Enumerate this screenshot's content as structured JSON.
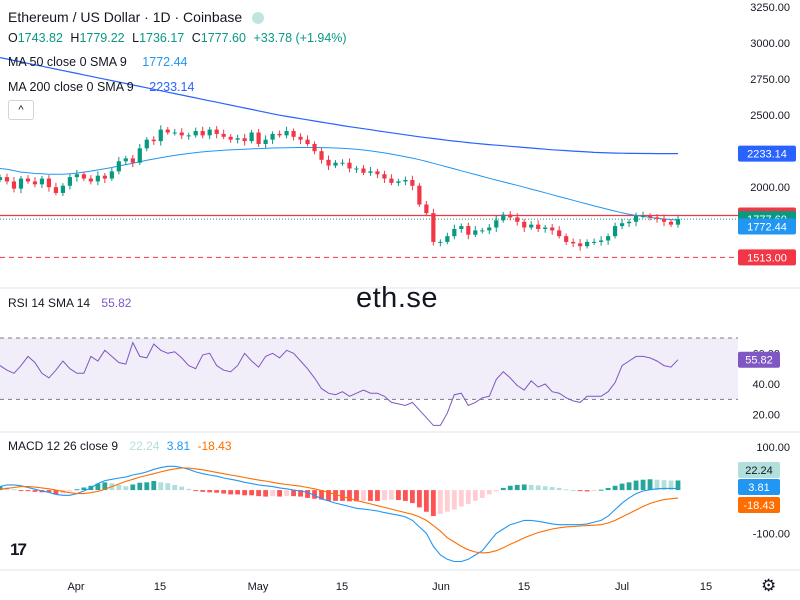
{
  "header": {
    "title": "Ethereum / US Dollar · 1D · Coinbase",
    "ohlc": {
      "o_label": "O",
      "o": "1743.82",
      "h_label": "H",
      "h": "1779.22",
      "l_label": "L",
      "l": "1736.17",
      "c_label": "C",
      "c": "1777.60",
      "change": "+33.78 (+1.94%)"
    },
    "ma50": {
      "label": "MA 50 close 0 SMA 9",
      "value": "1772.44"
    },
    "ma200": {
      "label": "MA 200 close 0 SMA 9",
      "value": "2233.14"
    },
    "collapse_icon": "^"
  },
  "watermark": "eth.se",
  "logo_text": "17",
  "settings_icon": "gear-icon",
  "colors": {
    "up": "#089981",
    "down": "#f23645",
    "ma50": "#2196f3",
    "ma200": "#2962ff",
    "rsi": "#7e57c2",
    "macd": "#2196f3",
    "signal": "#ff6d00",
    "hist_up_strong": "#26a69a",
    "hist_up_weak": "#b2dfdb",
    "hist_down_strong": "#ff5252",
    "hist_down_weak": "#ffcdd2"
  },
  "chart_data": [
    {
      "type": "candlestick",
      "title": "Ethereum / US Dollar · 1D · Coinbase",
      "ylim": [
        1300,
        3300
      ],
      "y_ticks": [
        "3250.00",
        "3000.00",
        "2750.00",
        "2500.00",
        "2250.00",
        "2000.00"
      ],
      "x_ticks": [
        "Apr",
        "15",
        "May",
        "15",
        "Jun",
        "15",
        "Jul",
        "15"
      ],
      "close": [
        2070,
        2040,
        1990,
        2060,
        2040,
        2020,
        2060,
        2000,
        1960,
        2010,
        2070,
        2090,
        2060,
        2040,
        2080,
        2060,
        2110,
        2180,
        2200,
        2170,
        2270,
        2330,
        2320,
        2400,
        2380,
        2380,
        2360,
        2360,
        2390,
        2360,
        2400,
        2370,
        2350,
        2330,
        2340,
        2320,
        2380,
        2300,
        2330,
        2370,
        2360,
        2390,
        2350,
        2330,
        2300,
        2250,
        2190,
        2150,
        2170,
        2170,
        2130,
        2130,
        2100,
        2110,
        2090,
        2060,
        2030,
        2040,
        2050,
        2010,
        1880,
        1820,
        1620,
        1620,
        1660,
        1710,
        1730,
        1670,
        1700,
        1700,
        1720,
        1770,
        1810,
        1790,
        1760,
        1720,
        1740,
        1710,
        1720,
        1700,
        1660,
        1620,
        1610,
        1590,
        1620,
        1620,
        1630,
        1660,
        1730,
        1750,
        1760,
        1800,
        1800,
        1790,
        1780,
        1760,
        1740,
        1778
      ],
      "ma50": [
        2130,
        2125,
        2115,
        2105,
        2100,
        2095,
        2093,
        2090,
        2090,
        2090,
        2093,
        2098,
        2105,
        2112,
        2120,
        2128,
        2137,
        2147,
        2157,
        2167,
        2177,
        2187,
        2196,
        2205,
        2213,
        2221,
        2228,
        2234,
        2240,
        2245,
        2249,
        2253,
        2256,
        2259,
        2262,
        2264,
        2266,
        2268,
        2270,
        2272,
        2273,
        2274,
        2275,
        2276,
        2276,
        2276,
        2275,
        2274,
        2272,
        2270,
        2267,
        2263,
        2258,
        2252,
        2245,
        2238,
        2230,
        2221,
        2212,
        2202,
        2191,
        2179,
        2166,
        2153,
        2140,
        2127,
        2114,
        2101,
        2088,
        2075,
        2062,
        2049,
        2037,
        2025,
        2013,
        2000,
        1987,
        1974,
        1961,
        1948,
        1935,
        1922,
        1909,
        1896,
        1883,
        1870,
        1858,
        1846,
        1834,
        1822,
        1812,
        1804,
        1797,
        1790,
        1784,
        1779,
        1775,
        1772.44
      ],
      "ma200": [
        2900,
        2890,
        2880,
        2870,
        2860,
        2850,
        2840,
        2830,
        2820,
        2810,
        2800,
        2790,
        2780,
        2770,
        2760,
        2750,
        2740,
        2730,
        2720,
        2710,
        2700,
        2690,
        2680,
        2670,
        2660,
        2650,
        2640,
        2630,
        2620,
        2610,
        2600,
        2590,
        2580,
        2570,
        2560,
        2550,
        2540,
        2530,
        2520,
        2510,
        2500,
        2492,
        2484,
        2476,
        2468,
        2460,
        2452,
        2444,
        2436,
        2428,
        2420,
        2413,
        2406,
        2399,
        2392,
        2385,
        2378,
        2371,
        2364,
        2357,
        2350,
        2344,
        2338,
        2332,
        2326,
        2320,
        2315,
        2310,
        2305,
        2300,
        2296,
        2292,
        2288,
        2284,
        2280,
        2276,
        2272,
        2268,
        2264,
        2260,
        2257,
        2254,
        2251,
        2248,
        2245,
        2242,
        2240,
        2238,
        2237,
        2236,
        2235,
        2234.5,
        2234,
        2233.8,
        2233.6,
        2233.4,
        2233.2,
        2233.14
      ],
      "price_labels": {
        "high_line": "1803.58",
        "last": "1777.60",
        "ma50": "1772.44",
        "ma200": "2233.14",
        "low_line": "1513.00"
      },
      "levels": {
        "high_line": 1803.58,
        "low_line": 1513.0
      }
    },
    {
      "type": "line",
      "name": "RSI",
      "legend": {
        "label": "RSI 14 SMA 14",
        "value": "55.82"
      },
      "ylim": [
        10,
        100
      ],
      "y_ticks": [
        "60.00",
        "40.00",
        "20.00"
      ],
      "bands": [
        30,
        70
      ],
      "last_label": "55.82",
      "values": [
        52,
        49,
        47,
        52,
        58,
        54,
        47,
        44,
        49,
        55,
        50,
        47,
        47,
        58,
        55,
        62,
        58,
        54,
        53,
        67,
        58,
        57,
        66,
        62,
        60,
        61,
        57,
        52,
        50,
        59,
        60,
        52,
        49,
        48,
        52,
        60,
        55,
        51,
        58,
        60,
        57,
        62,
        60,
        55,
        50,
        44,
        37,
        34,
        33,
        35,
        32,
        34,
        36,
        34,
        34,
        32,
        28,
        27,
        26,
        28,
        23,
        18,
        13,
        13,
        21,
        33,
        34,
        26,
        28,
        31,
        32,
        43,
        48,
        44,
        39,
        36,
        42,
        38,
        40,
        35,
        34,
        31,
        29,
        28,
        32,
        32,
        32,
        35,
        41,
        52,
        55,
        58,
        58,
        57,
        55,
        52,
        51,
        55.82
      ]
    },
    {
      "type": "bar",
      "name": "MACD",
      "legend": {
        "label": "MACD 12 26 close 9",
        "hist": "22.24",
        "macd": "3.81",
        "signal": "-18.43"
      },
      "ylim": [
        -180,
        125
      ],
      "y_ticks": [
        "100.00",
        "-100.00"
      ],
      "last_labels": {
        "hist": "22.24",
        "macd": "3.81",
        "signal": "-18.43"
      },
      "histogram": [
        8,
        6,
        2,
        -2,
        -2,
        -4,
        -5,
        -5,
        -10,
        -8,
        -3,
        2,
        6,
        10,
        15,
        18,
        16,
        12,
        9,
        13,
        17,
        18,
        21,
        18,
        16,
        12,
        8,
        3,
        -2,
        -4,
        -5,
        -6,
        -8,
        -10,
        -10,
        -12,
        -12,
        -14,
        -15,
        -14,
        -15,
        -14,
        -14,
        -15,
        -18,
        -20,
        -22,
        -25,
        -25,
        -25,
        -26,
        -26,
        -25,
        -25,
        -25,
        -23,
        -22,
        -23,
        -25,
        -30,
        -40,
        -50,
        -60,
        -55,
        -50,
        -45,
        -38,
        -32,
        -25,
        -18,
        -10,
        -3,
        5,
        10,
        12,
        13,
        12,
        11,
        9,
        7,
        5,
        2,
        0,
        -2,
        -3,
        -2,
        1,
        5,
        10,
        15,
        18,
        22,
        24,
        25,
        24,
        23,
        22,
        22.24
      ],
      "macd": [
        8,
        12,
        12,
        10,
        6,
        2,
        -2,
        -5,
        -10,
        -12,
        -12,
        -8,
        -2,
        5,
        15,
        22,
        25,
        28,
        30,
        35,
        38,
        42,
        48,
        52,
        55,
        55,
        52,
        48,
        42,
        38,
        35,
        32,
        28,
        25,
        22,
        18,
        15,
        12,
        10,
        8,
        5,
        3,
        0,
        -2,
        -5,
        -12,
        -20,
        -25,
        -30,
        -34,
        -38,
        -42,
        -44,
        -46,
        -48,
        -52,
        -55,
        -58,
        -62,
        -70,
        -85,
        -100,
        -130,
        -150,
        -160,
        -165,
        -165,
        -160,
        -150,
        -140,
        -120,
        -100,
        -90,
        -80,
        -75,
        -70,
        -70,
        -72,
        -75,
        -78,
        -80,
        -80,
        -80,
        -80,
        -78,
        -74,
        -70,
        -60,
        -45,
        -30,
        -18,
        -8,
        -2,
        1,
        3,
        4,
        4,
        3.81
      ],
      "signal": [
        2,
        4,
        6,
        8,
        8,
        7,
        5,
        3,
        0,
        -3,
        -6,
        -8,
        -8,
        -6,
        -3,
        2,
        8,
        14,
        20,
        25,
        30,
        34,
        38,
        42,
        46,
        49,
        51,
        51,
        49,
        47,
        44,
        41,
        38,
        35,
        32,
        29,
        26,
        23,
        21,
        18,
        15,
        13,
        11,
        9,
        6,
        3,
        -1,
        -5,
        -10,
        -15,
        -19,
        -24,
        -28,
        -32,
        -36,
        -40,
        -44,
        -48,
        -52,
        -56,
        -62,
        -70,
        -82,
        -95,
        -110,
        -120,
        -130,
        -138,
        -143,
        -145,
        -144,
        -140,
        -133,
        -125,
        -118,
        -110,
        -104,
        -98,
        -94,
        -90,
        -87,
        -85,
        -84,
        -83,
        -82,
        -81,
        -80,
        -76,
        -70,
        -62,
        -54,
        -46,
        -38,
        -31,
        -26,
        -22,
        -20,
        -18.43
      ]
    }
  ]
}
